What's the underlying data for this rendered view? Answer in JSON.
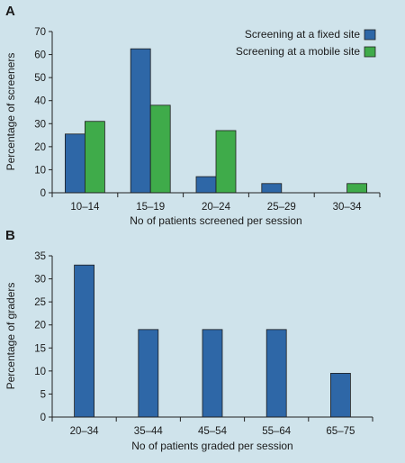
{
  "chart_data": [
    {
      "panel": "A",
      "type": "bar",
      "categories": [
        "10–14",
        "15–19",
        "20–24",
        "25–29",
        "30–34"
      ],
      "series": [
        {
          "name": "Screening at a fixed site",
          "color": "#2e67a7",
          "values": [
            25.5,
            62.5,
            7,
            4,
            0
          ]
        },
        {
          "name": "Screening at a mobile site",
          "color": "#3fab4a",
          "values": [
            31,
            38,
            27,
            0,
            4
          ]
        }
      ],
      "xlabel": "No of patients screened per session",
      "ylabel": "Percentage of screeners",
      "ylim": [
        0,
        70
      ],
      "yticks": [
        0,
        10,
        20,
        30,
        40,
        50,
        60,
        70
      ],
      "legend_position": "top-right",
      "grid": false
    },
    {
      "panel": "B",
      "type": "bar",
      "categories": [
        "20–34",
        "35–44",
        "45–54",
        "55–64",
        "65–75"
      ],
      "series": [
        {
          "color": "#2e67a7",
          "values": [
            33,
            19,
            19,
            19,
            9.5
          ]
        }
      ],
      "xlabel": "No of patients graded per session",
      "ylabel": "Percentage of graders",
      "ylim": [
        0,
        35
      ],
      "yticks": [
        0,
        5,
        10,
        15,
        20,
        25,
        30,
        35
      ],
      "grid": false
    }
  ]
}
